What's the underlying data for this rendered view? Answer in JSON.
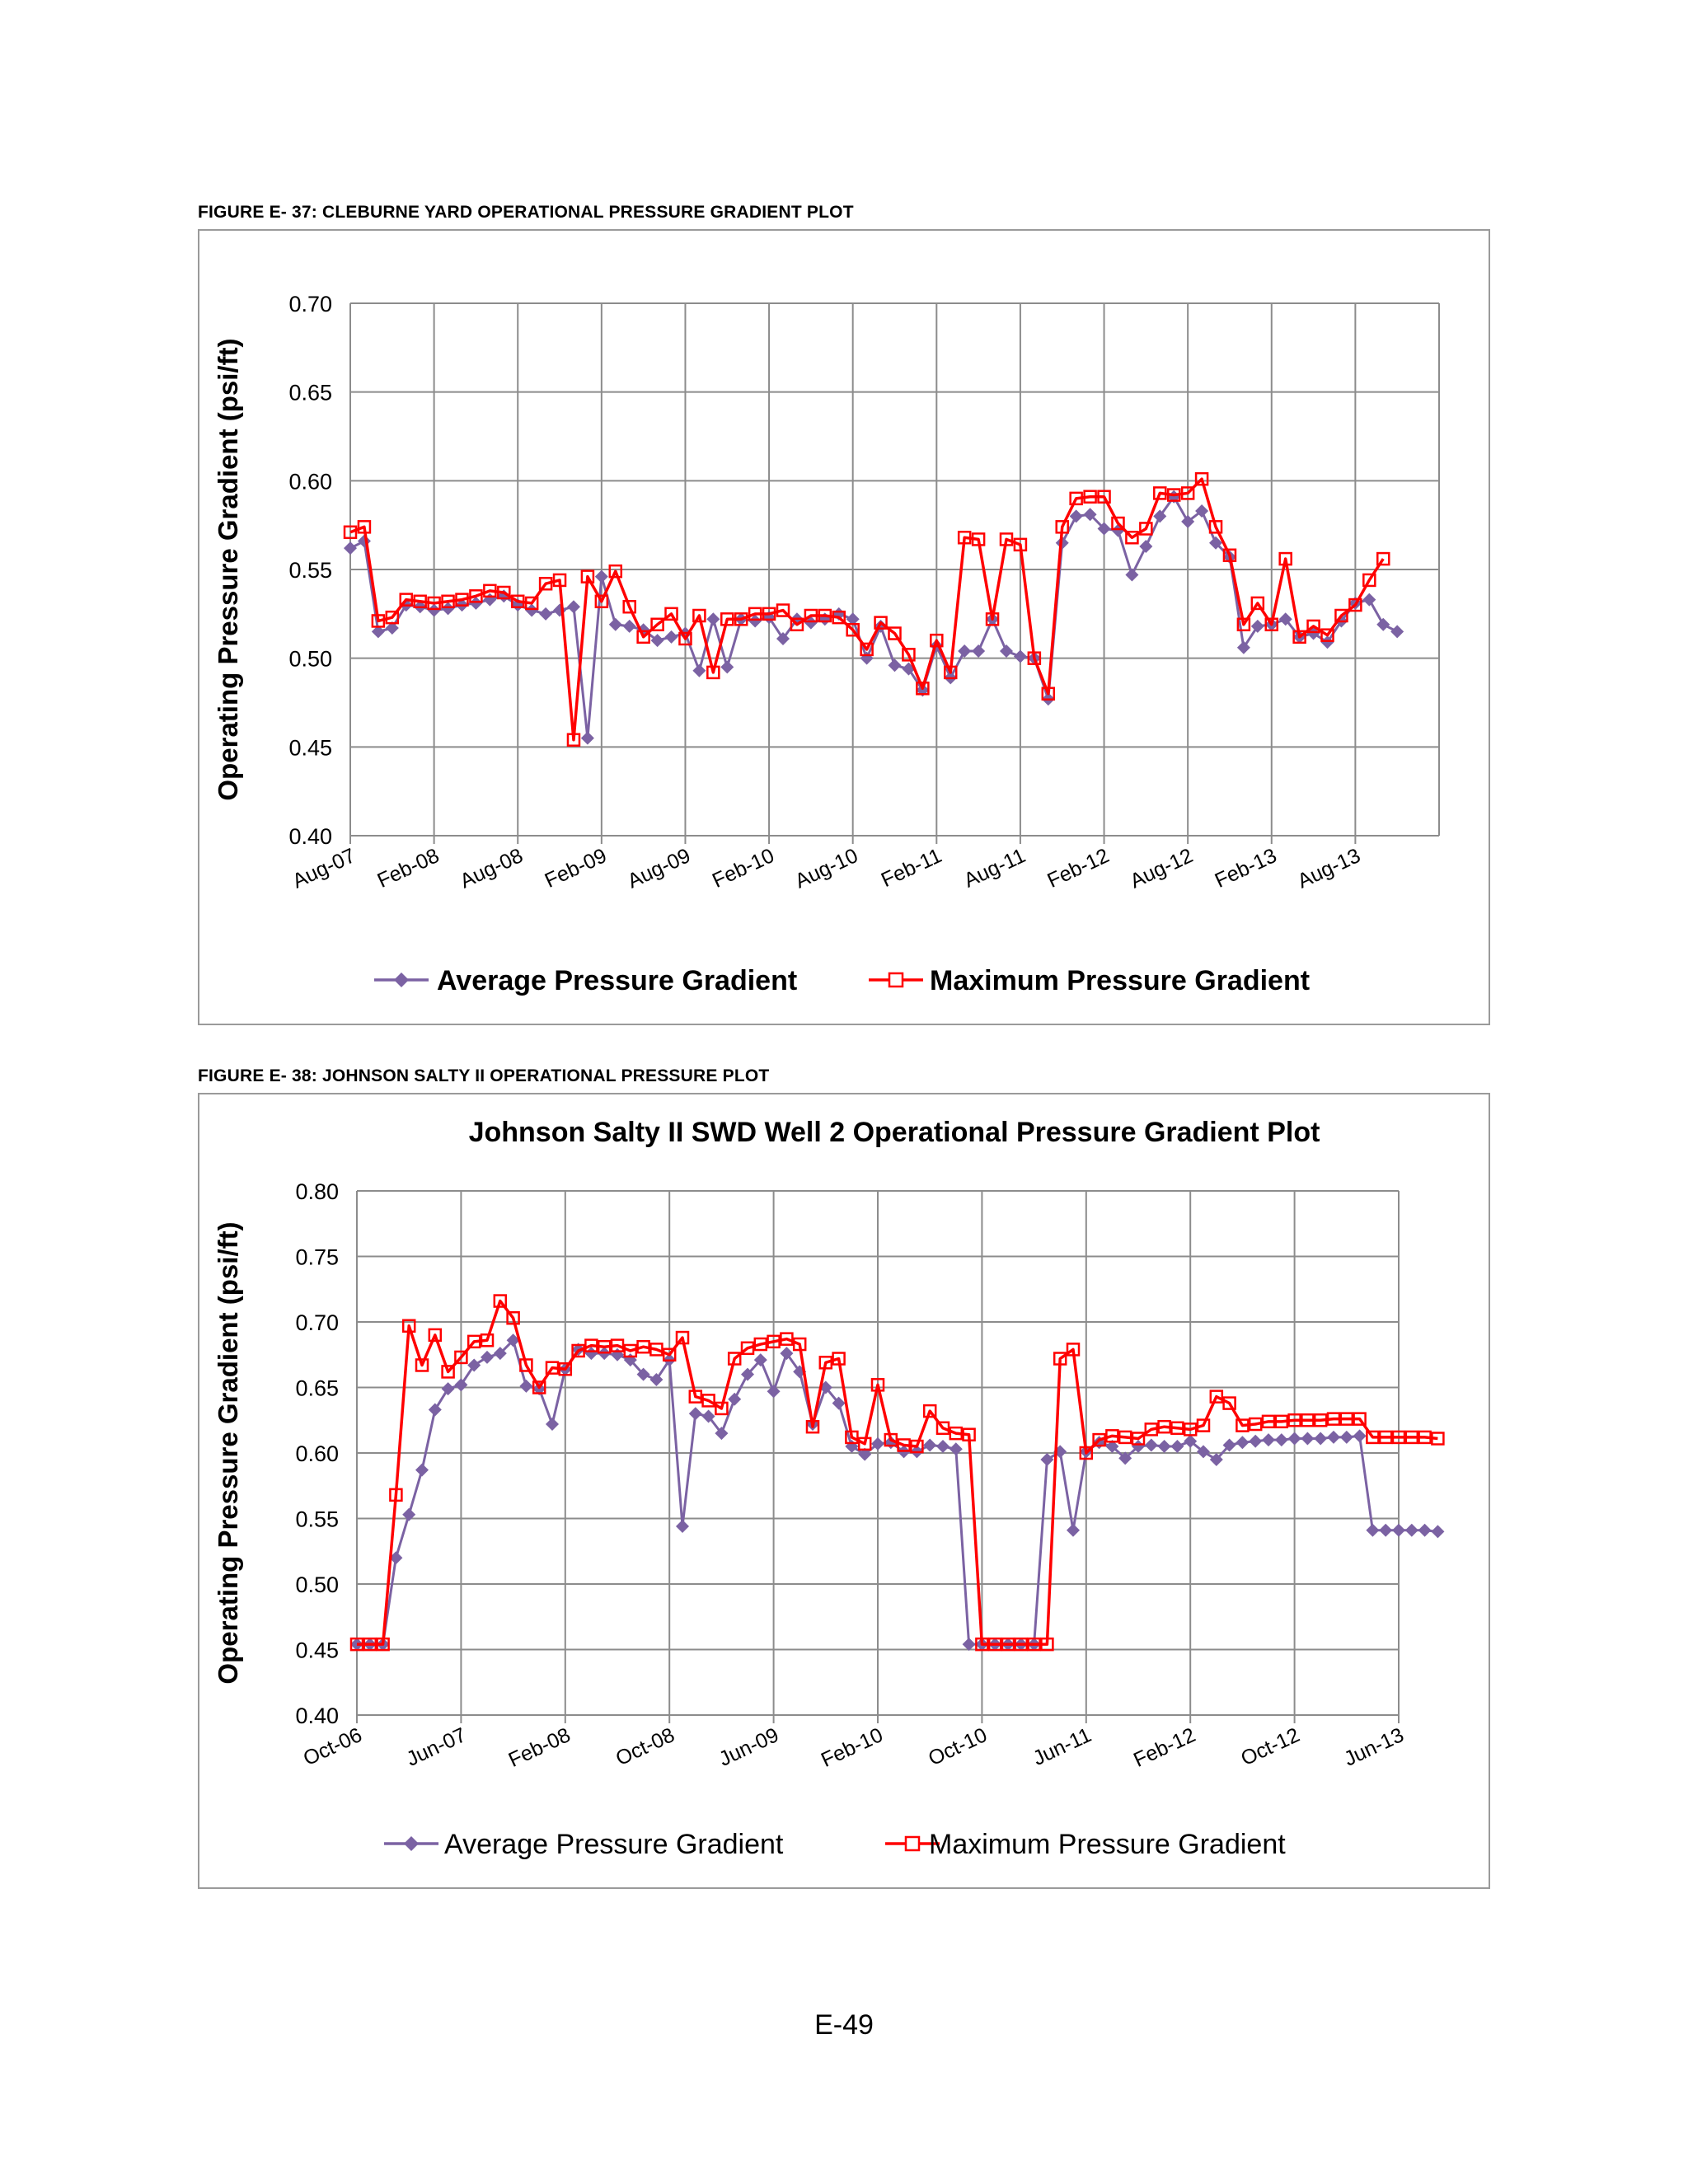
{
  "page": {
    "page_number": "E-49"
  },
  "figures": [
    {
      "caption": "FIGURE E- 37:  CLEBURNE YARD OPERATIONAL PRESSURE GRADIENT PLOT"
    },
    {
      "caption": "FIGURE E- 38:  JOHNSON SALTY II OPERATIONAL PRESSURE PLOT"
    }
  ],
  "chart_data": [
    {
      "type": "line",
      "title": "",
      "xlabel": "",
      "ylabel": "Operating Pressure Gradient (psi/ft)",
      "ylim": [
        0.4,
        0.7
      ],
      "ytick_step": 0.05,
      "yticks": [
        "0.40",
        "0.45",
        "0.50",
        "0.55",
        "0.60",
        "0.65",
        "0.70"
      ],
      "x_start_month": "2007-08",
      "x_ticks": [
        "Aug-07",
        "Feb-08",
        "Aug-08",
        "Feb-09",
        "Aug-09",
        "Feb-10",
        "Aug-10",
        "Feb-11",
        "Aug-11",
        "Feb-12",
        "Aug-12",
        "Feb-13",
        "Aug-13"
      ],
      "grid": true,
      "legend_position": "bottom",
      "x": [
        "2007-08",
        "2007-09",
        "2007-10",
        "2007-11",
        "2007-12",
        "2008-01",
        "2008-02",
        "2008-03",
        "2008-04",
        "2008-05",
        "2008-06",
        "2008-07",
        "2008-08",
        "2008-09",
        "2008-10",
        "2008-11",
        "2008-12",
        "2009-01",
        "2009-02",
        "2009-03",
        "2009-04",
        "2009-05",
        "2009-06",
        "2009-07",
        "2009-08",
        "2009-09",
        "2009-10",
        "2009-11",
        "2009-12",
        "2010-01",
        "2010-02",
        "2010-03",
        "2010-04",
        "2010-05",
        "2010-06",
        "2010-07",
        "2010-08",
        "2010-09",
        "2010-10",
        "2010-11",
        "2010-12",
        "2011-01",
        "2011-02",
        "2011-03",
        "2011-04",
        "2011-05",
        "2011-06",
        "2011-07",
        "2011-08",
        "2011-09",
        "2011-10",
        "2011-11",
        "2011-12",
        "2012-01",
        "2012-02",
        "2012-03",
        "2012-04",
        "2012-05",
        "2012-06",
        "2012-07",
        "2012-08",
        "2012-09",
        "2012-10",
        "2012-11",
        "2012-12",
        "2013-01",
        "2013-02",
        "2013-03",
        "2013-04",
        "2013-05",
        "2013-06",
        "2013-07",
        "2013-08",
        "2013-09",
        "2013-10",
        "2013-11"
      ],
      "series": [
        {
          "name": "Average Pressure Gradient",
          "color": "#7b62a3",
          "marker": "diamond",
          "values": [
            0.562,
            0.566,
            0.515,
            0.517,
            0.53,
            0.529,
            0.527,
            0.528,
            0.53,
            0.531,
            0.533,
            0.535,
            0.53,
            0.527,
            0.525,
            0.527,
            0.529,
            0.455,
            0.546,
            0.519,
            0.518,
            0.516,
            0.51,
            0.512,
            0.514,
            0.493,
            0.522,
            0.495,
            0.522,
            0.521,
            0.523,
            0.511,
            0.522,
            0.52,
            0.522,
            0.525,
            0.522,
            0.5,
            0.518,
            0.496,
            0.494,
            0.482,
            0.507,
            0.489,
            0.504,
            0.504,
            0.522,
            0.504,
            0.501,
            0.5,
            0.477,
            0.565,
            0.58,
            0.581,
            0.573,
            0.572,
            0.547,
            0.563,
            0.58,
            0.591,
            0.577,
            0.583,
            0.565,
            0.557,
            0.506,
            0.518,
            0.519,
            0.522,
            0.512,
            0.514,
            0.509,
            0.521,
            0.531,
            0.533,
            0.519,
            0.515
          ]
        },
        {
          "name": "Maximum Pressure Gradient",
          "color": "#ff0000",
          "marker": "open-square",
          "values": [
            0.571,
            0.574,
            0.521,
            0.523,
            0.533,
            0.532,
            0.531,
            0.532,
            0.533,
            0.535,
            0.538,
            0.537,
            0.532,
            0.531,
            0.542,
            0.544,
            0.454,
            0.546,
            0.532,
            0.549,
            0.529,
            0.512,
            0.519,
            0.525,
            0.511,
            0.524,
            0.492,
            0.522,
            0.522,
            0.525,
            0.525,
            0.527,
            0.519,
            0.524,
            0.524,
            0.523,
            0.516,
            0.505,
            0.52,
            0.514,
            0.502,
            0.483,
            0.51,
            0.492,
            0.568,
            0.567,
            0.522,
            0.567,
            0.564,
            0.5,
            0.48,
            0.574,
            0.59,
            0.591,
            0.591,
            0.576,
            0.568,
            0.573,
            0.593,
            0.592,
            0.593,
            0.601,
            0.574,
            0.558,
            0.519,
            0.531,
            0.519,
            0.556,
            0.512,
            0.518,
            0.513,
            0.524,
            0.53,
            0.544,
            0.556,
            null
          ]
        }
      ]
    },
    {
      "type": "line",
      "title": "Johnson Salty II SWD Well 2 Operational Pressure Gradient Plot",
      "xlabel": "",
      "ylabel": "Operating Pressure Gradient (psi/ft)",
      "ylim": [
        0.4,
        0.8
      ],
      "ytick_step": 0.05,
      "yticks": [
        "0.40",
        "0.45",
        "0.50",
        "0.55",
        "0.60",
        "0.65",
        "0.70",
        "0.75",
        "0.80"
      ],
      "x_start_month": "2006-10",
      "x_ticks": [
        "Oct-06",
        "Jun-07",
        "Feb-08",
        "Oct-08",
        "Jun-09",
        "Feb-10",
        "Oct-10",
        "Jun-11",
        "Feb-12",
        "Oct-12",
        "Jun-13"
      ],
      "grid": true,
      "legend_position": "bottom",
      "x": [
        "2006-10",
        "2006-11",
        "2006-12",
        "2007-01",
        "2007-02",
        "2007-03",
        "2007-04",
        "2007-05",
        "2007-06",
        "2007-07",
        "2007-08",
        "2007-09",
        "2007-10",
        "2007-11",
        "2007-12",
        "2008-01",
        "2008-02",
        "2008-03",
        "2008-04",
        "2008-05",
        "2008-06",
        "2008-07",
        "2008-08",
        "2008-09",
        "2008-10",
        "2008-11",
        "2008-12",
        "2009-01",
        "2009-02",
        "2009-03",
        "2009-04",
        "2009-05",
        "2009-06",
        "2009-07",
        "2009-08",
        "2009-09",
        "2009-10",
        "2009-11",
        "2009-12",
        "2010-01",
        "2010-02",
        "2010-03",
        "2010-04",
        "2010-05",
        "2010-06",
        "2010-07",
        "2010-08",
        "2010-09",
        "2010-10",
        "2010-11",
        "2010-12",
        "2011-01",
        "2011-02",
        "2011-03",
        "2011-04",
        "2011-05",
        "2011-06",
        "2011-07",
        "2011-08",
        "2011-09",
        "2011-10",
        "2011-11",
        "2011-12",
        "2012-01",
        "2012-02",
        "2012-03",
        "2012-04",
        "2012-05",
        "2012-06",
        "2012-07",
        "2012-08",
        "2012-09",
        "2012-10",
        "2012-11",
        "2012-12",
        "2013-01",
        "2013-02",
        "2013-03",
        "2013-04",
        "2013-05",
        "2013-06",
        "2013-07",
        "2013-08",
        "2013-09"
      ],
      "series": [
        {
          "name": "Average Pressure Gradient",
          "color": "#7b62a3",
          "marker": "diamond",
          "values": [
            0.454,
            0.454,
            0.454,
            0.52,
            0.553,
            0.587,
            0.633,
            0.649,
            0.652,
            0.667,
            0.673,
            0.676,
            0.686,
            0.651,
            0.649,
            0.622,
            0.664,
            0.679,
            0.676,
            0.676,
            0.675,
            0.671,
            0.66,
            0.656,
            0.671,
            0.544,
            0.63,
            0.628,
            0.615,
            0.641,
            0.66,
            0.671,
            0.647,
            0.676,
            0.662,
            0.622,
            0.65,
            0.638,
            0.605,
            0.599,
            0.607,
            0.608,
            0.601,
            0.601,
            0.606,
            0.605,
            0.603,
            0.454,
            0.454,
            0.454,
            0.454,
            0.454,
            0.454,
            0.595,
            0.601,
            0.541,
            0.601,
            0.608,
            0.605,
            0.596,
            0.605,
            0.606,
            0.605,
            0.605,
            0.609,
            0.601,
            0.595,
            0.606,
            0.608,
            0.609,
            0.61,
            0.61,
            0.611,
            0.611,
            0.611,
            0.612,
            0.612,
            0.613,
            0.541,
            0.541,
            0.541,
            0.541,
            0.541,
            0.54
          ]
        },
        {
          "name": "Maximum Pressure Gradient",
          "color": "#ff0000",
          "marker": "open-square",
          "values": [
            0.454,
            0.454,
            0.454,
            0.568,
            0.697,
            0.667,
            0.69,
            0.662,
            0.673,
            0.685,
            0.686,
            0.716,
            0.703,
            0.667,
            0.65,
            0.665,
            0.664,
            0.678,
            0.682,
            0.681,
            0.682,
            0.678,
            0.681,
            0.679,
            0.675,
            0.688,
            0.643,
            0.64,
            0.634,
            0.672,
            0.68,
            0.683,
            0.685,
            0.687,
            0.683,
            0.62,
            0.669,
            0.672,
            0.612,
            0.607,
            0.652,
            0.61,
            0.606,
            0.605,
            0.632,
            0.619,
            0.615,
            0.614,
            0.454,
            0.454,
            0.454,
            0.454,
            0.454,
            0.454,
            0.672,
            0.679,
            0.6,
            0.61,
            0.613,
            0.612,
            0.611,
            0.618,
            0.62,
            0.619,
            0.618,
            0.621,
            0.643,
            0.638,
            0.621,
            0.622,
            0.624,
            0.624,
            0.625,
            0.625,
            0.625,
            0.626,
            0.626,
            0.626,
            0.612,
            0.612,
            0.612,
            0.612,
            0.612,
            0.611
          ]
        }
      ]
    }
  ]
}
